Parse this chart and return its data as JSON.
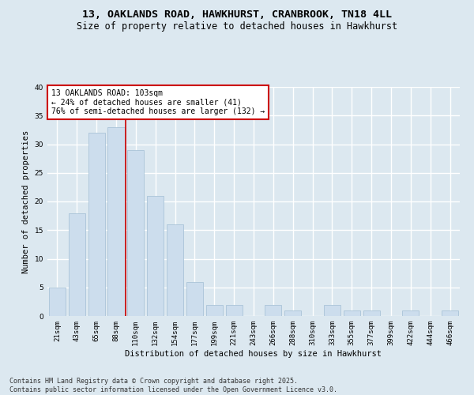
{
  "title_line1": "13, OAKLANDS ROAD, HAWKHURST, CRANBROOK, TN18 4LL",
  "title_line2": "Size of property relative to detached houses in Hawkhurst",
  "xlabel": "Distribution of detached houses by size in Hawkhurst",
  "ylabel": "Number of detached properties",
  "categories": [
    "21sqm",
    "43sqm",
    "65sqm",
    "88sqm",
    "110sqm",
    "132sqm",
    "154sqm",
    "177sqm",
    "199sqm",
    "221sqm",
    "243sqm",
    "266sqm",
    "288sqm",
    "310sqm",
    "333sqm",
    "355sqm",
    "377sqm",
    "399sqm",
    "422sqm",
    "444sqm",
    "466sqm"
  ],
  "values": [
    5,
    18,
    32,
    33,
    29,
    21,
    16,
    6,
    2,
    2,
    0,
    2,
    1,
    0,
    2,
    1,
    1,
    0,
    1,
    0,
    1
  ],
  "bar_color": "#ccdded",
  "bar_edge_color": "#aac4d8",
  "vline_x_index": 4,
  "vline_color": "#cc0000",
  "annotation_text": "13 OAKLANDS ROAD: 103sqm\n← 24% of detached houses are smaller (41)\n76% of semi-detached houses are larger (132) →",
  "annotation_box_facecolor": "#ffffff",
  "annotation_box_edgecolor": "#cc0000",
  "ylim": [
    0,
    40
  ],
  "yticks": [
    0,
    5,
    10,
    15,
    20,
    25,
    30,
    35,
    40
  ],
  "footnote": "Contains HM Land Registry data © Crown copyright and database right 2025.\nContains public sector information licensed under the Open Government Licence v3.0.",
  "background_color": "#dce8f0",
  "grid_color": "#ffffff",
  "title_fontsize": 9.5,
  "subtitle_fontsize": 8.5,
  "axis_label_fontsize": 7.5,
  "tick_fontsize": 6.5,
  "annotation_fontsize": 7,
  "footnote_fontsize": 6
}
